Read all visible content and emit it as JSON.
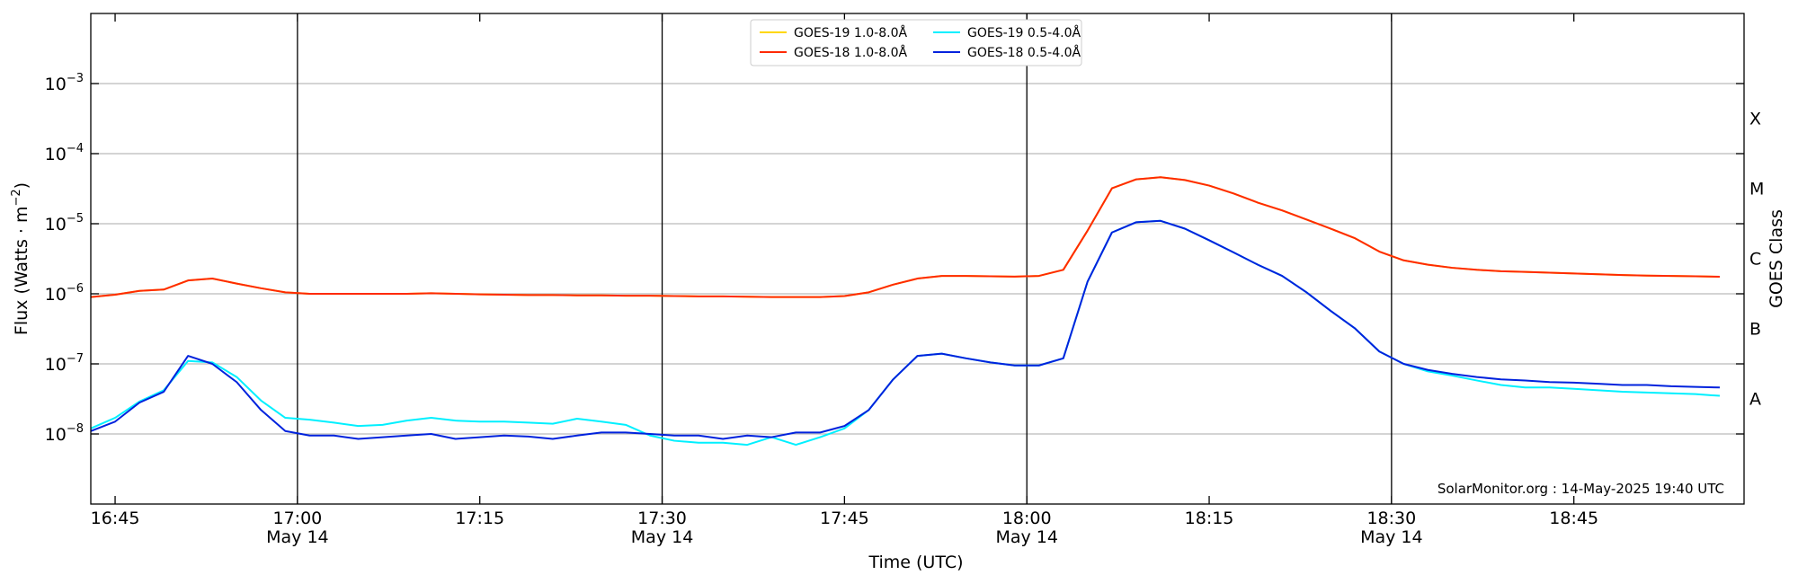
{
  "chart_data": {
    "type": "line",
    "yscale": "log",
    "grid": true,
    "legend": "upper center",
    "ylabel": {
      "text": "Flux (Watts · m",
      "exponent": "−2",
      "end": ")"
    },
    "y2label": "GOES Class",
    "xlabel": "Time (UTC)",
    "annotation": "SolarMonitor.org : 14-May-2025 19:40 UTC",
    "xlim": [
      "16:43",
      "18:59"
    ],
    "xticks": [
      "16:45",
      "17:00",
      "17:15",
      "17:30",
      "17:45",
      "18:00",
      "18:15",
      "18:30",
      "18:45"
    ],
    "x_date_labels": [
      {
        "value": "17:00",
        "label": "May 14"
      },
      {
        "value": "17:30",
        "label": "May 14"
      },
      {
        "value": "18:00",
        "label": "May 14"
      },
      {
        "value": "18:30",
        "label": "May 14"
      }
    ],
    "ylim": [
      1e-09,
      0.01
    ],
    "yticks": [
      {
        "value": 1e-08,
        "label": "10",
        "exponent": "−8"
      },
      {
        "value": 1e-07,
        "label": "10",
        "exponent": "−7"
      },
      {
        "value": 1e-06,
        "label": "10",
        "exponent": "−6"
      },
      {
        "value": 1e-05,
        "label": "10",
        "exponent": "−5"
      },
      {
        "value": 0.0001,
        "label": "10",
        "exponent": "−4"
      },
      {
        "value": 0.001,
        "label": "10",
        "exponent": "−3"
      }
    ],
    "y2lim": [
      1e-09,
      0.01
    ],
    "y2ticks": [
      {
        "value": 3.2e-08,
        "label": "A"
      },
      {
        "value": 3.2e-07,
        "label": "B"
      },
      {
        "value": 3.2e-06,
        "label": "C"
      },
      {
        "value": 3.2e-05,
        "label": "M"
      },
      {
        "value": 0.00032,
        "label": "X"
      }
    ],
    "x": [
      "16:43",
      "16:45",
      "16:47",
      "16:49",
      "16:51",
      "16:53",
      "16:55",
      "16:57",
      "16:59",
      "17:01",
      "17:03",
      "17:05",
      "17:07",
      "17:09",
      "17:11",
      "17:13",
      "17:15",
      "17:17",
      "17:19",
      "17:21",
      "17:23",
      "17:25",
      "17:27",
      "17:29",
      "17:31",
      "17:33",
      "17:35",
      "17:37",
      "17:39",
      "17:41",
      "17:43",
      "17:45",
      "17:47",
      "17:49",
      "17:51",
      "17:53",
      "17:55",
      "17:57",
      "17:59",
      "18:01",
      "18:03",
      "18:05",
      "18:07",
      "18:09",
      "18:11",
      "18:13",
      "18:15",
      "18:17",
      "18:19",
      "18:21",
      "18:23",
      "18:25",
      "18:27",
      "18:29",
      "18:31",
      "18:33",
      "18:35",
      "18:37",
      "18:39",
      "18:41",
      "18:43",
      "18:45",
      "18:47",
      "18:49",
      "18:51",
      "18:53",
      "18:55",
      "18:57"
    ],
    "series": [
      {
        "name": "GOES-19 1.0-8.0Å",
        "color": "#ffd700",
        "values": [
          9e-07,
          9.7e-07,
          1.1e-06,
          1.15e-06,
          1.55e-06,
          1.65e-06,
          1.4e-06,
          1.2e-06,
          1.05e-06,
          1e-06,
          1e-06,
          1e-06,
          1e-06,
          1e-06,
          1.02e-06,
          1e-06,
          9.8e-07,
          9.7e-07,
          9.6e-07,
          9.6e-07,
          9.5e-07,
          9.5e-07,
          9.4e-07,
          9.4e-07,
          9.3e-07,
          9.2e-07,
          9.2e-07,
          9.1e-07,
          9e-07,
          9e-07,
          9e-07,
          9.3e-07,
          1.05e-06,
          1.35e-06,
          1.65e-06,
          1.8e-06,
          1.8e-06,
          1.78e-06,
          1.76e-06,
          1.8e-06,
          2.2e-06,
          8e-06,
          3.2e-05,
          4.3e-05,
          4.6e-05,
          4.2e-05,
          3.5e-05,
          2.7e-05,
          2e-05,
          1.55e-05,
          1.15e-05,
          8.5e-06,
          6.2e-06,
          4e-06,
          3e-06,
          2.6e-06,
          2.35e-06,
          2.2e-06,
          2.1e-06,
          2.05e-06,
          2e-06,
          1.95e-06,
          1.9e-06,
          1.85e-06,
          1.82e-06,
          1.8e-06,
          1.78e-06,
          1.75e-06
        ]
      },
      {
        "name": "GOES-18 1.0-8.0Å",
        "color": "#ff2a00",
        "values": [
          9e-07,
          9.7e-07,
          1.1e-06,
          1.15e-06,
          1.55e-06,
          1.65e-06,
          1.4e-06,
          1.2e-06,
          1.05e-06,
          1e-06,
          1e-06,
          1e-06,
          1e-06,
          1e-06,
          1.02e-06,
          1e-06,
          9.8e-07,
          9.7e-07,
          9.6e-07,
          9.6e-07,
          9.5e-07,
          9.5e-07,
          9.4e-07,
          9.4e-07,
          9.3e-07,
          9.2e-07,
          9.2e-07,
          9.1e-07,
          9e-07,
          9e-07,
          9e-07,
          9.3e-07,
          1.05e-06,
          1.35e-06,
          1.65e-06,
          1.8e-06,
          1.8e-06,
          1.78e-06,
          1.76e-06,
          1.8e-06,
          2.2e-06,
          8e-06,
          3.2e-05,
          4.3e-05,
          4.6e-05,
          4.2e-05,
          3.5e-05,
          2.7e-05,
          2e-05,
          1.55e-05,
          1.15e-05,
          8.5e-06,
          6.2e-06,
          4e-06,
          3e-06,
          2.6e-06,
          2.35e-06,
          2.2e-06,
          2.1e-06,
          2.05e-06,
          2e-06,
          1.95e-06,
          1.9e-06,
          1.85e-06,
          1.82e-06,
          1.8e-06,
          1.78e-06,
          1.75e-06
        ]
      },
      {
        "name": "GOES-19 0.5-4.0Å",
        "color": "#00f0ff",
        "values": [
          1.2e-08,
          1.7e-08,
          2.9e-08,
          4.2e-08,
          1.1e-07,
          1.05e-07,
          6.5e-08,
          3e-08,
          1.7e-08,
          1.6e-08,
          1.45e-08,
          1.3e-08,
          1.35e-08,
          1.55e-08,
          1.7e-08,
          1.55e-08,
          1.5e-08,
          1.5e-08,
          1.45e-08,
          1.4e-08,
          1.65e-08,
          1.5e-08,
          1.35e-08,
          9.5e-09,
          8e-09,
          7.5e-09,
          7.5e-09,
          7e-09,
          9e-09,
          7e-09,
          9e-09,
          1.2e-08,
          2.2e-08,
          6e-08,
          1.3e-07,
          1.4e-07,
          1.2e-07,
          1.05e-07,
          9.5e-08,
          9.5e-08,
          1.2e-07,
          1.5e-06,
          7.5e-06,
          1.05e-05,
          1.1e-05,
          8.5e-06,
          5.8e-06,
          3.9e-06,
          2.6e-06,
          1.8e-06,
          1.05e-06,
          5.7e-07,
          3.2e-07,
          1.5e-07,
          1e-07,
          7.8e-08,
          6.8e-08,
          5.8e-08,
          5e-08,
          4.6e-08,
          4.6e-08,
          4.4e-08,
          4.2e-08,
          4e-08,
          3.9e-08,
          3.8e-08,
          3.7e-08,
          3.5e-08
        ]
      },
      {
        "name": "GOES-18 0.5-4.0Å",
        "color": "#0022dd",
        "values": [
          1.1e-08,
          1.5e-08,
          2.8e-08,
          4e-08,
          1.3e-07,
          1e-07,
          5.5e-08,
          2.2e-08,
          1.1e-08,
          9.5e-09,
          9.5e-09,
          8.5e-09,
          9e-09,
          9.5e-09,
          1e-08,
          8.5e-09,
          9e-09,
          9.5e-09,
          9.2e-09,
          8.5e-09,
          9.5e-09,
          1.05e-08,
          1.05e-08,
          1e-08,
          9.5e-09,
          9.5e-09,
          8.5e-09,
          9.5e-09,
          9e-09,
          1.05e-08,
          1.05e-08,
          1.3e-08,
          2.2e-08,
          6e-08,
          1.3e-07,
          1.4e-07,
          1.2e-07,
          1.05e-07,
          9.5e-08,
          9.5e-08,
          1.2e-07,
          1.5e-06,
          7.5e-06,
          1.05e-05,
          1.1e-05,
          8.5e-06,
          5.8e-06,
          3.9e-06,
          2.6e-06,
          1.8e-06,
          1.05e-06,
          5.7e-07,
          3.2e-07,
          1.5e-07,
          1e-07,
          8.2e-08,
          7.2e-08,
          6.5e-08,
          6e-08,
          5.8e-08,
          5.5e-08,
          5.4e-08,
          5.2e-08,
          5e-08,
          5e-08,
          4.8e-08,
          4.7e-08,
          4.6e-08
        ]
      }
    ]
  }
}
